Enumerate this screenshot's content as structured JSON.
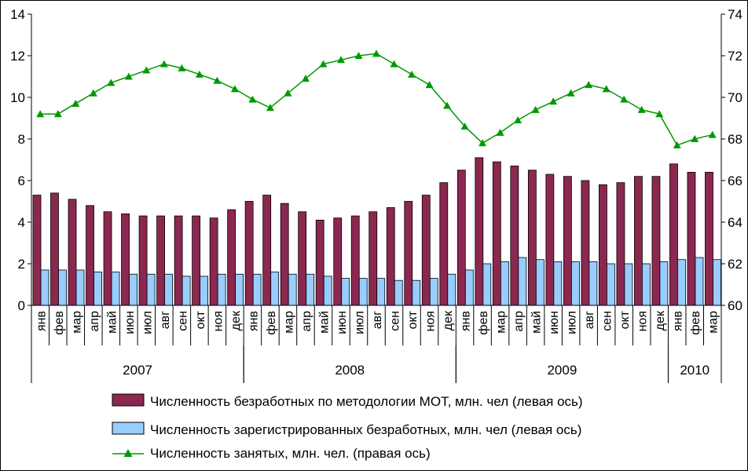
{
  "chart_data": {
    "type": "bar",
    "months": [
      "янв",
      "фев",
      "мар",
      "апр",
      "май",
      "июн",
      "июл",
      "авг",
      "сен",
      "окт",
      "ноя",
      "дек",
      "янв",
      "фев",
      "мар",
      "апр",
      "май",
      "июн",
      "июл",
      "авг",
      "сен",
      "окт",
      "ноя",
      "дек",
      "янв",
      "фев",
      "мар",
      "апр",
      "май",
      "июн",
      "июл",
      "авг",
      "сен",
      "окт",
      "ноя",
      "дек",
      "янв",
      "фев",
      "мар"
    ],
    "years": [
      {
        "label": "2007",
        "start": 0,
        "count": 12
      },
      {
        "label": "2008",
        "start": 12,
        "count": 12
      },
      {
        "label": "2009",
        "start": 24,
        "count": 12
      },
      {
        "label": "2010",
        "start": 36,
        "count": 3
      }
    ],
    "left_axis": {
      "min": 0,
      "max": 14,
      "step": 2,
      "ticks": [
        "0",
        "2",
        "4",
        "6",
        "8",
        "10",
        "12",
        "14"
      ]
    },
    "right_axis": {
      "min": 60,
      "max": 74,
      "step": 2,
      "ticks": [
        "60",
        "62",
        "64",
        "66",
        "68",
        "70",
        "72",
        "74"
      ]
    },
    "series": [
      {
        "name": "Численность безработных по методологии МОТ, млн. чел (левая ось)",
        "kind": "bar",
        "axis": "left",
        "color": "#8B2850",
        "values": [
          5.3,
          5.4,
          5.1,
          4.8,
          4.5,
          4.4,
          4.3,
          4.3,
          4.3,
          4.3,
          4.2,
          4.6,
          5.0,
          5.3,
          4.9,
          4.5,
          4.1,
          4.2,
          4.3,
          4.5,
          4.7,
          5.0,
          5.3,
          5.9,
          6.5,
          7.1,
          6.9,
          6.7,
          6.5,
          6.3,
          6.2,
          6.0,
          5.8,
          5.9,
          6.2,
          6.2,
          6.8,
          6.4,
          6.4
        ]
      },
      {
        "name": "Численность зарегистрированных безработных, млн. чел (левая ось)",
        "kind": "bar",
        "axis": "left",
        "color": "#99CCFF",
        "values": [
          1.7,
          1.7,
          1.7,
          1.6,
          1.6,
          1.5,
          1.5,
          1.5,
          1.4,
          1.4,
          1.5,
          1.5,
          1.5,
          1.6,
          1.5,
          1.5,
          1.4,
          1.3,
          1.3,
          1.3,
          1.2,
          1.2,
          1.3,
          1.5,
          1.7,
          2.0,
          2.1,
          2.3,
          2.2,
          2.1,
          2.1,
          2.1,
          2.0,
          2.0,
          2.0,
          2.1,
          2.2,
          2.3,
          2.2
        ]
      },
      {
        "name": "Численность занятых, млн. чел. (правая ось)",
        "kind": "line",
        "axis": "right",
        "color": "#009900",
        "values": [
          69.2,
          69.2,
          69.7,
          70.2,
          70.7,
          71.0,
          71.3,
          71.6,
          71.4,
          71.1,
          70.8,
          70.4,
          69.9,
          69.5,
          70.2,
          70.9,
          71.6,
          71.8,
          72.0,
          72.1,
          71.6,
          71.1,
          70.6,
          69.6,
          68.6,
          67.8,
          68.3,
          68.9,
          69.4,
          69.8,
          70.2,
          70.6,
          70.4,
          69.9,
          69.4,
          69.2,
          67.7,
          68.0,
          68.2
        ]
      }
    ],
    "legend_position": "bottom",
    "grid": false
  }
}
